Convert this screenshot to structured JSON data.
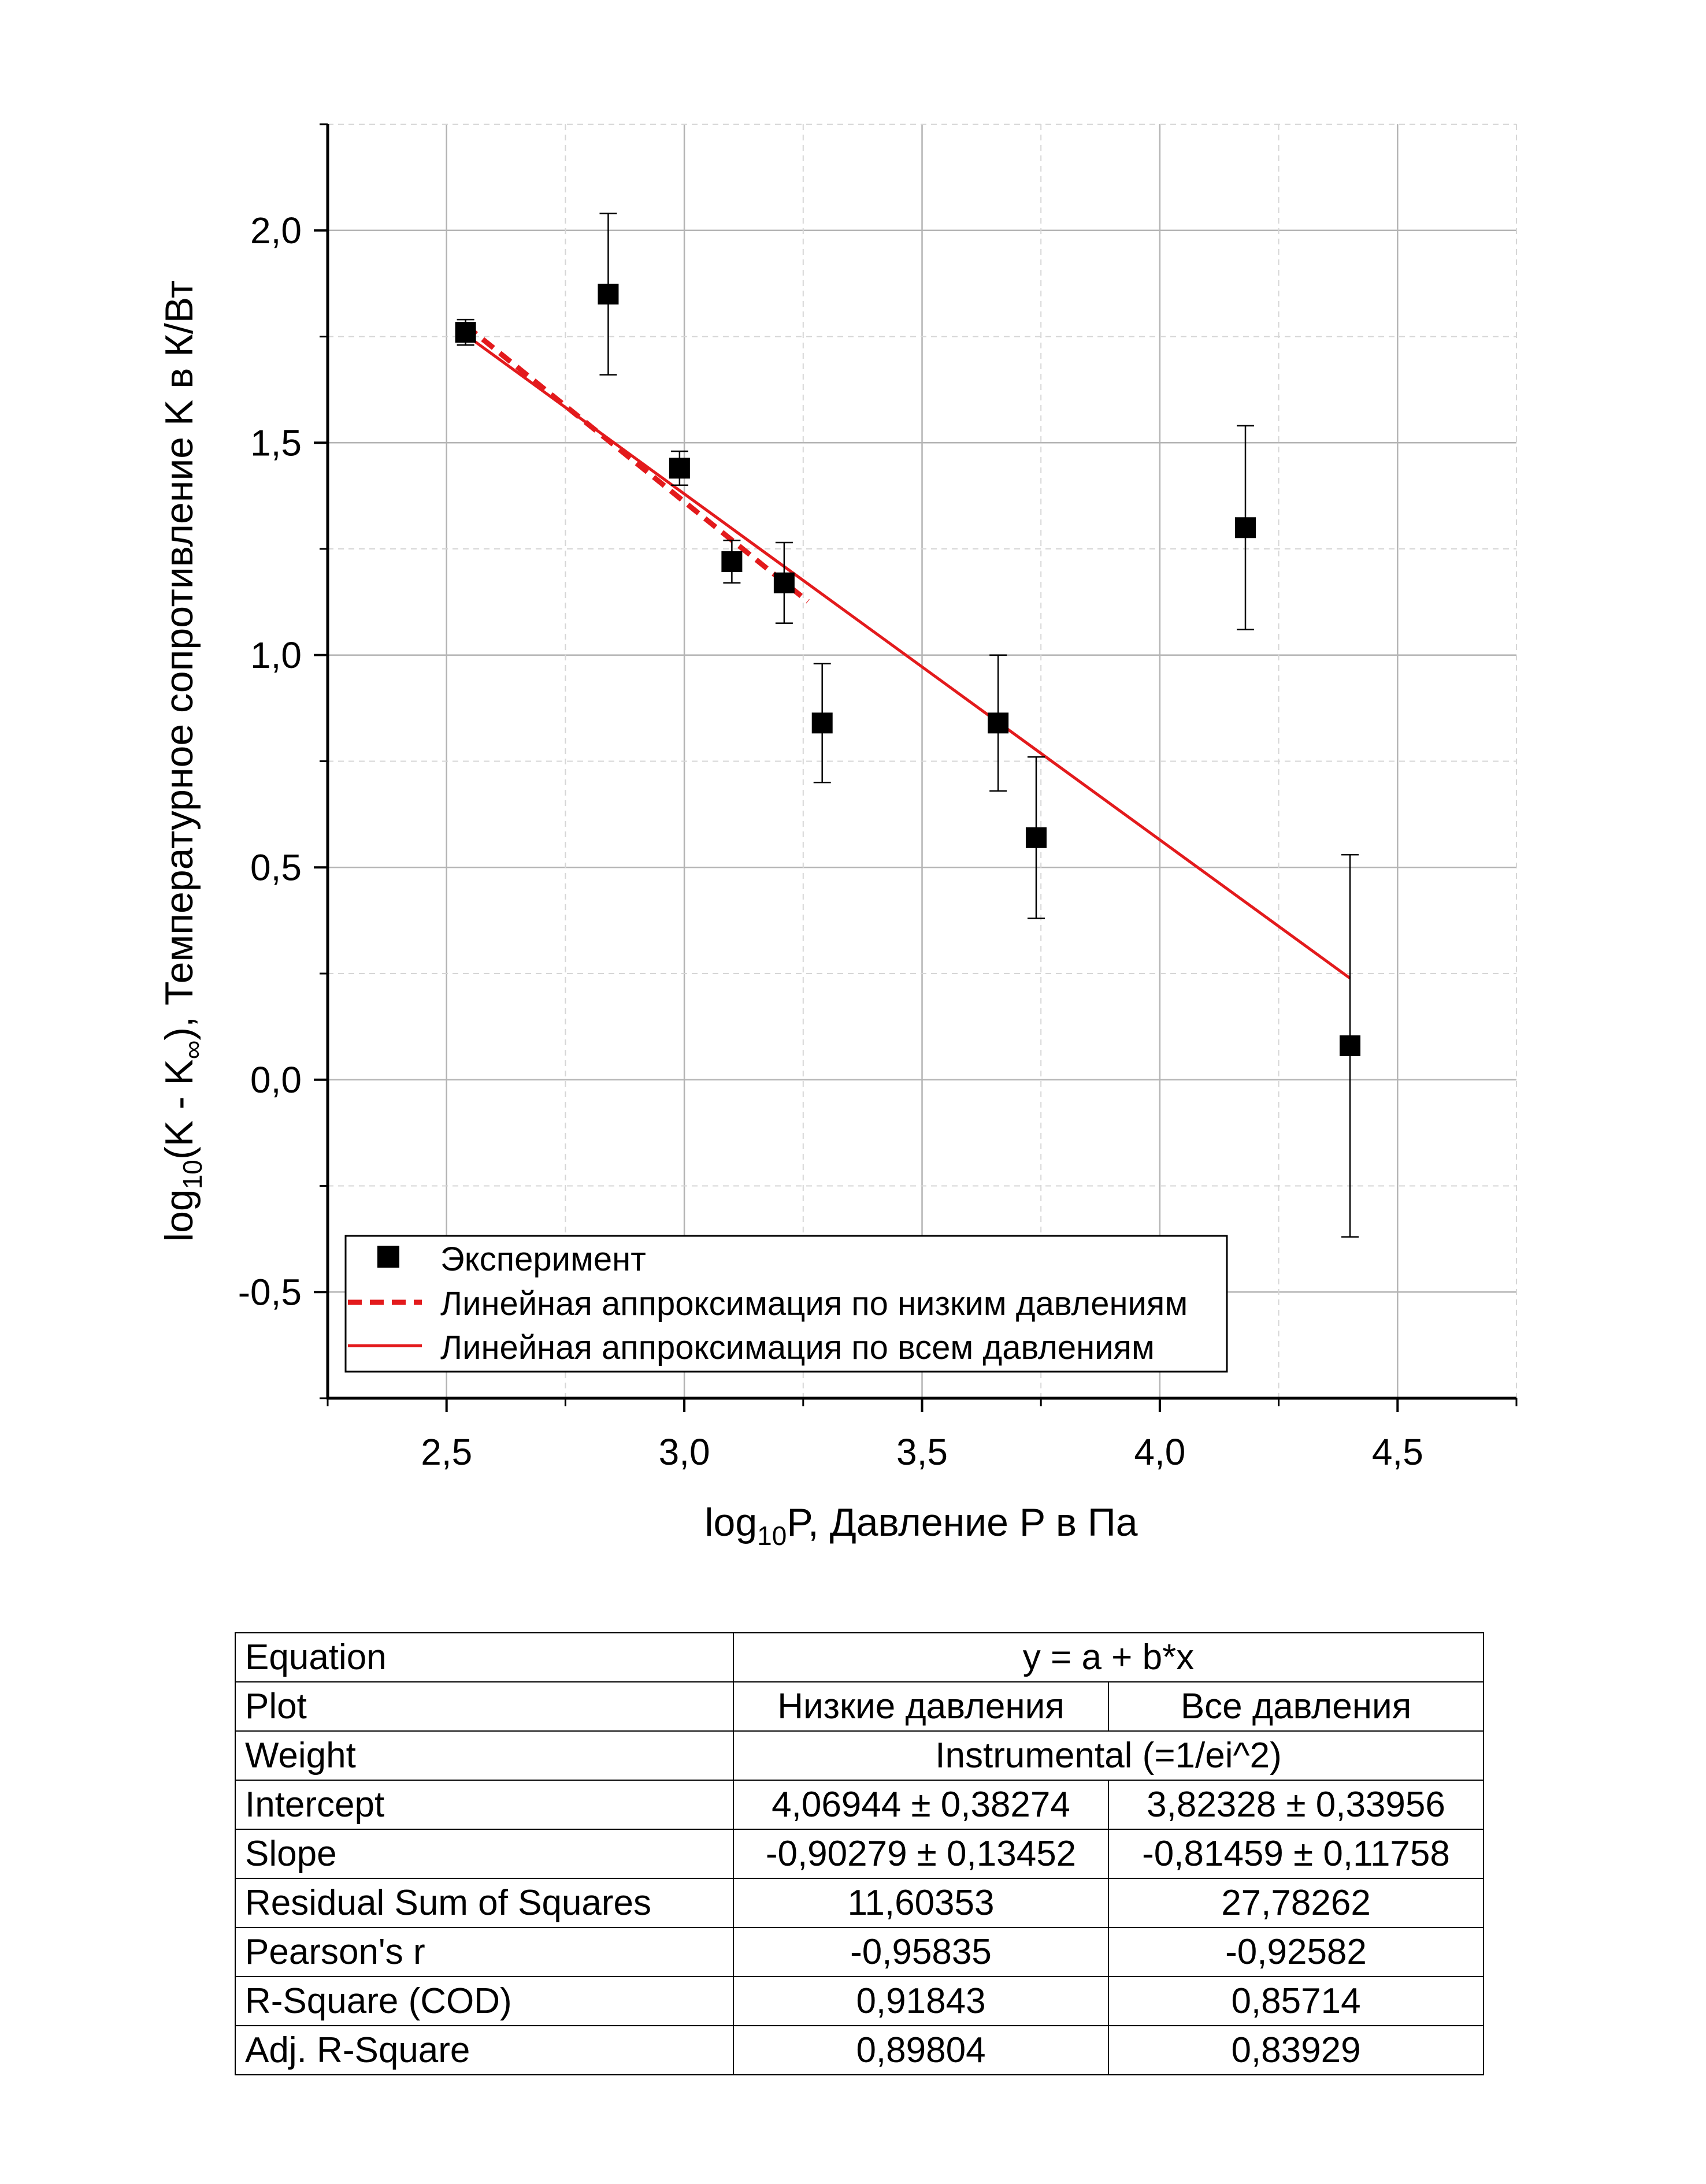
{
  "chart_data": {
    "type": "scatter",
    "title": "",
    "xlabel": {
      "pre": "log",
      "sub": "10",
      "post": "P, Давление P в Па"
    },
    "ylabel": {
      "pre": "log",
      "sub1": "10",
      "mid": "(K - K",
      "sub2": "∞",
      "post": "), Температурное сопротивление K в К/Вт"
    },
    "xlim": [
      2.25,
      4.75
    ],
    "ylim": [
      -0.75,
      2.25
    ],
    "x_ticks": [
      {
        "v": 2.5,
        "label": "2,5"
      },
      {
        "v": 3.0,
        "label": "3,0"
      },
      {
        "v": 3.5,
        "label": "3,5"
      },
      {
        "v": 4.0,
        "label": "4,0"
      },
      {
        "v": 4.5,
        "label": "4,5"
      }
    ],
    "y_ticks": [
      {
        "v": -0.5,
        "label": "-0,5"
      },
      {
        "v": 0.0,
        "label": "0,0"
      },
      {
        "v": 0.5,
        "label": "0,5"
      },
      {
        "v": 1.0,
        "label": "1,0"
      },
      {
        "v": 1.5,
        "label": "1,5"
      },
      {
        "v": 2.0,
        "label": "2,0"
      }
    ],
    "grid": true,
    "legend_position": "bottom-left",
    "series": [
      {
        "name": "Эксперимент",
        "kind": "scatter",
        "color": "#000000",
        "points": [
          {
            "x": 2.54,
            "y": 1.76,
            "err": 0.03
          },
          {
            "x": 2.84,
            "y": 1.85,
            "err": 0.19
          },
          {
            "x": 2.99,
            "y": 1.44,
            "err": 0.04
          },
          {
            "x": 3.1,
            "y": 1.22,
            "err": 0.05
          },
          {
            "x": 3.21,
            "y": 1.17,
            "err": 0.095
          },
          {
            "x": 3.29,
            "y": 0.84,
            "err": 0.14
          },
          {
            "x": 3.66,
            "y": 0.84,
            "err": 0.16
          },
          {
            "x": 3.74,
            "y": 0.57,
            "err": 0.19
          },
          {
            "x": 4.18,
            "y": 1.3,
            "err": 0.24
          },
          {
            "x": 4.4,
            "y": 0.08,
            "err": 0.45
          }
        ]
      },
      {
        "name": "Линейная аппроксимация по низким давлениям",
        "kind": "line",
        "style": "dashed",
        "color": "#e31a1c",
        "x": [
          2.54,
          3.26
        ],
        "y": [
          1.7762,
          1.1262
        ]
      },
      {
        "name": "Линейная аппроксимация по всем давлениям",
        "kind": "line",
        "style": "solid",
        "color": "#e31a1c",
        "x": [
          2.54,
          4.4
        ],
        "y": [
          1.7542,
          0.239
        ]
      }
    ]
  },
  "fit_table": {
    "rows": [
      {
        "label": "Equation",
        "merged": "y = a + b*x"
      },
      {
        "label": "Plot",
        "low": "Низкие давления",
        "all": "Все давления"
      },
      {
        "label": "Weight",
        "merged": "Instrumental (=1/ei^2)"
      },
      {
        "label": "Intercept",
        "low": "4,06944 ± 0,38274",
        "all": "3,82328 ± 0,33956"
      },
      {
        "label": "Slope",
        "low": "-0,90279 ± 0,13452",
        "all": "-0,81459 ± 0,11758"
      },
      {
        "label": "Residual Sum of Squares",
        "low": "11,60353",
        "all": "27,78262"
      },
      {
        "label": "Pearson's r",
        "low": "-0,95835",
        "all": "-0,92582"
      },
      {
        "label": "R-Square (COD)",
        "low": "0,91843",
        "all": "0,85714"
      },
      {
        "label": "Adj. R-Square",
        "low": "0,89804",
        "all": "0,83929"
      }
    ]
  }
}
